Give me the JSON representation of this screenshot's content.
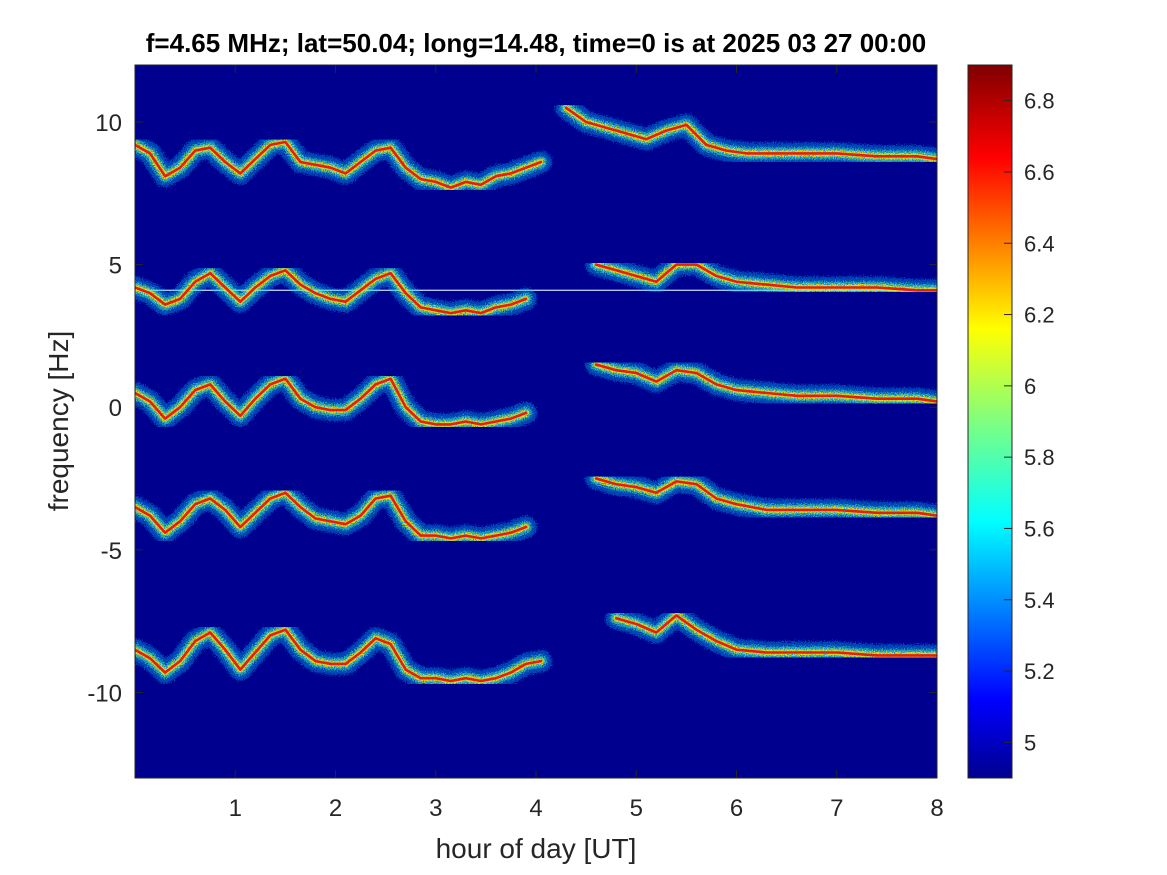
{
  "chart_data": {
    "type": "heatmap",
    "title": "f=4.65 MHz;  lat=50.04; long=14.48, time=0 is at 2025 03 27 00:00",
    "xlabel": "hour of day [UT]",
    "ylabel": "frequency [Hz]",
    "xlim": [
      0,
      8
    ],
    "ylim": [
      -13,
      12
    ],
    "xticks": [
      1,
      2,
      3,
      4,
      5,
      6,
      7,
      8
    ],
    "yticks": [
      10,
      5,
      0,
      -5,
      -10
    ],
    "colorbar": {
      "clim": [
        4.9,
        6.9
      ],
      "ticks": [
        6.8,
        6.6,
        6.4,
        6.2,
        6,
        5.8,
        5.6,
        5.4,
        5.2,
        5
      ],
      "colormap": "jet",
      "background_color": "#00008f"
    },
    "carrier_line_hz": 4.1,
    "colors": {
      "background": "#00008f",
      "peak": "#e61e0f",
      "mid": "#ffe600",
      "edge": "#00c8ff"
    },
    "traces": [
      {
        "name": "",
        "segments": [
          {
            "x": [
              0.0,
              0.15,
              0.3,
              0.45,
              0.6,
              0.75,
              0.9,
              1.05,
              1.2,
              1.35,
              1.5,
              1.65,
              1.8,
              1.95,
              2.1,
              2.25,
              2.4,
              2.55,
              2.7,
              2.85,
              3.0,
              3.15,
              3.3,
              3.45,
              3.6,
              3.75,
              3.9,
              4.05
            ],
            "y": [
              9.2,
              8.9,
              8.1,
              8.4,
              9.0,
              9.1,
              8.6,
              8.2,
              8.7,
              9.2,
              9.3,
              8.6,
              8.5,
              8.4,
              8.2,
              8.6,
              9.0,
              9.1,
              8.4,
              8.0,
              7.9,
              7.7,
              7.9,
              7.8,
              8.1,
              8.2,
              8.4,
              8.6
            ]
          },
          {
            "x": [
              4.3,
              4.5,
              4.7,
              4.9,
              5.1,
              5.3,
              5.5,
              5.7,
              5.9,
              6.1,
              6.3,
              6.6,
              7.0,
              7.4,
              7.8,
              8.0
            ],
            "y": [
              10.5,
              10.0,
              9.8,
              9.6,
              9.4,
              9.7,
              9.9,
              9.2,
              9.0,
              8.9,
              8.9,
              8.9,
              8.9,
              8.8,
              8.8,
              8.7
            ]
          }
        ]
      },
      {
        "name": "",
        "segments": [
          {
            "x": [
              0.0,
              0.15,
              0.3,
              0.45,
              0.6,
              0.75,
              0.9,
              1.05,
              1.2,
              1.35,
              1.5,
              1.65,
              1.8,
              1.95,
              2.1,
              2.25,
              2.4,
              2.55,
              2.7,
              2.85,
              3.0,
              3.15,
              3.3,
              3.45,
              3.6,
              3.75,
              3.9
            ],
            "y": [
              4.2,
              4.0,
              3.6,
              3.8,
              4.4,
              4.7,
              4.2,
              3.7,
              4.2,
              4.6,
              4.8,
              4.3,
              4.0,
              3.8,
              3.7,
              4.1,
              4.5,
              4.7,
              4.0,
              3.5,
              3.4,
              3.3,
              3.4,
              3.3,
              3.5,
              3.6,
              3.8
            ]
          },
          {
            "x": [
              4.6,
              4.8,
              5.0,
              5.2,
              5.4,
              5.6,
              5.8,
              6.0,
              6.3,
              6.6,
              7.0,
              7.4,
              7.8,
              8.0
            ],
            "y": [
              5.0,
              4.8,
              4.6,
              4.4,
              5.0,
              5.0,
              4.6,
              4.4,
              4.3,
              4.2,
              4.2,
              4.2,
              4.1,
              4.1
            ]
          }
        ]
      },
      {
        "name": "",
        "segments": [
          {
            "x": [
              0.0,
              0.15,
              0.3,
              0.45,
              0.6,
              0.75,
              0.9,
              1.05,
              1.2,
              1.35,
              1.5,
              1.65,
              1.8,
              1.95,
              2.1,
              2.25,
              2.4,
              2.55,
              2.7,
              2.85,
              3.0,
              3.15,
              3.3,
              3.45,
              3.6,
              3.75,
              3.9
            ],
            "y": [
              0.5,
              0.2,
              -0.4,
              0.0,
              0.6,
              0.8,
              0.2,
              -0.3,
              0.3,
              0.8,
              1.0,
              0.3,
              0.0,
              -0.1,
              -0.1,
              0.3,
              0.8,
              1.0,
              0.0,
              -0.5,
              -0.6,
              -0.6,
              -0.5,
              -0.6,
              -0.5,
              -0.4,
              -0.2
            ]
          },
          {
            "x": [
              4.6,
              4.8,
              5.0,
              5.2,
              5.4,
              5.6,
              5.8,
              6.0,
              6.3,
              6.6,
              7.0,
              7.4,
              7.8,
              8.0
            ],
            "y": [
              1.5,
              1.3,
              1.2,
              0.9,
              1.3,
              1.2,
              0.8,
              0.6,
              0.5,
              0.4,
              0.4,
              0.3,
              0.3,
              0.2
            ]
          }
        ]
      },
      {
        "name": "",
        "segments": [
          {
            "x": [
              0.0,
              0.15,
              0.3,
              0.45,
              0.6,
              0.75,
              0.9,
              1.05,
              1.2,
              1.35,
              1.5,
              1.65,
              1.8,
              1.95,
              2.1,
              2.25,
              2.4,
              2.55,
              2.7,
              2.85,
              3.0,
              3.15,
              3.3,
              3.45,
              3.6,
              3.75,
              3.9
            ],
            "y": [
              -3.5,
              -3.8,
              -4.4,
              -4.0,
              -3.4,
              -3.2,
              -3.6,
              -4.2,
              -3.7,
              -3.2,
              -3.0,
              -3.5,
              -3.9,
              -4.0,
              -4.1,
              -3.8,
              -3.2,
              -3.1,
              -4.0,
              -4.5,
              -4.5,
              -4.6,
              -4.5,
              -4.6,
              -4.5,
              -4.4,
              -4.2
            ]
          },
          {
            "x": [
              4.6,
              4.8,
              5.0,
              5.2,
              5.4,
              5.6,
              5.8,
              6.0,
              6.3,
              6.6,
              7.0,
              7.4,
              7.8,
              8.0
            ],
            "y": [
              -2.5,
              -2.7,
              -2.8,
              -3.0,
              -2.6,
              -2.7,
              -3.2,
              -3.4,
              -3.6,
              -3.6,
              -3.6,
              -3.7,
              -3.7,
              -3.8
            ]
          }
        ]
      },
      {
        "name": "",
        "segments": [
          {
            "x": [
              0.0,
              0.15,
              0.3,
              0.45,
              0.6,
              0.75,
              0.9,
              1.05,
              1.2,
              1.35,
              1.5,
              1.65,
              1.8,
              1.95,
              2.1,
              2.25,
              2.4,
              2.55,
              2.7,
              2.85,
              3.0,
              3.15,
              3.3,
              3.45,
              3.6,
              3.75,
              3.9,
              4.05
            ],
            "y": [
              -8.5,
              -8.8,
              -9.3,
              -8.9,
              -8.2,
              -7.9,
              -8.5,
              -9.2,
              -8.6,
              -8.0,
              -7.8,
              -8.5,
              -8.9,
              -9.0,
              -9.0,
              -8.6,
              -8.1,
              -8.3,
              -9.2,
              -9.5,
              -9.5,
              -9.6,
              -9.5,
              -9.6,
              -9.5,
              -9.3,
              -9.0,
              -8.9
            ]
          },
          {
            "x": [
              4.8,
              5.0,
              5.2,
              5.4,
              5.6,
              5.8,
              6.0,
              6.3,
              6.6,
              7.0,
              7.4,
              7.8,
              8.0
            ],
            "y": [
              -7.4,
              -7.6,
              -7.9,
              -7.3,
              -7.8,
              -8.2,
              -8.5,
              -8.6,
              -8.6,
              -8.6,
              -8.7,
              -8.7,
              -8.7
            ]
          }
        ]
      }
    ]
  }
}
